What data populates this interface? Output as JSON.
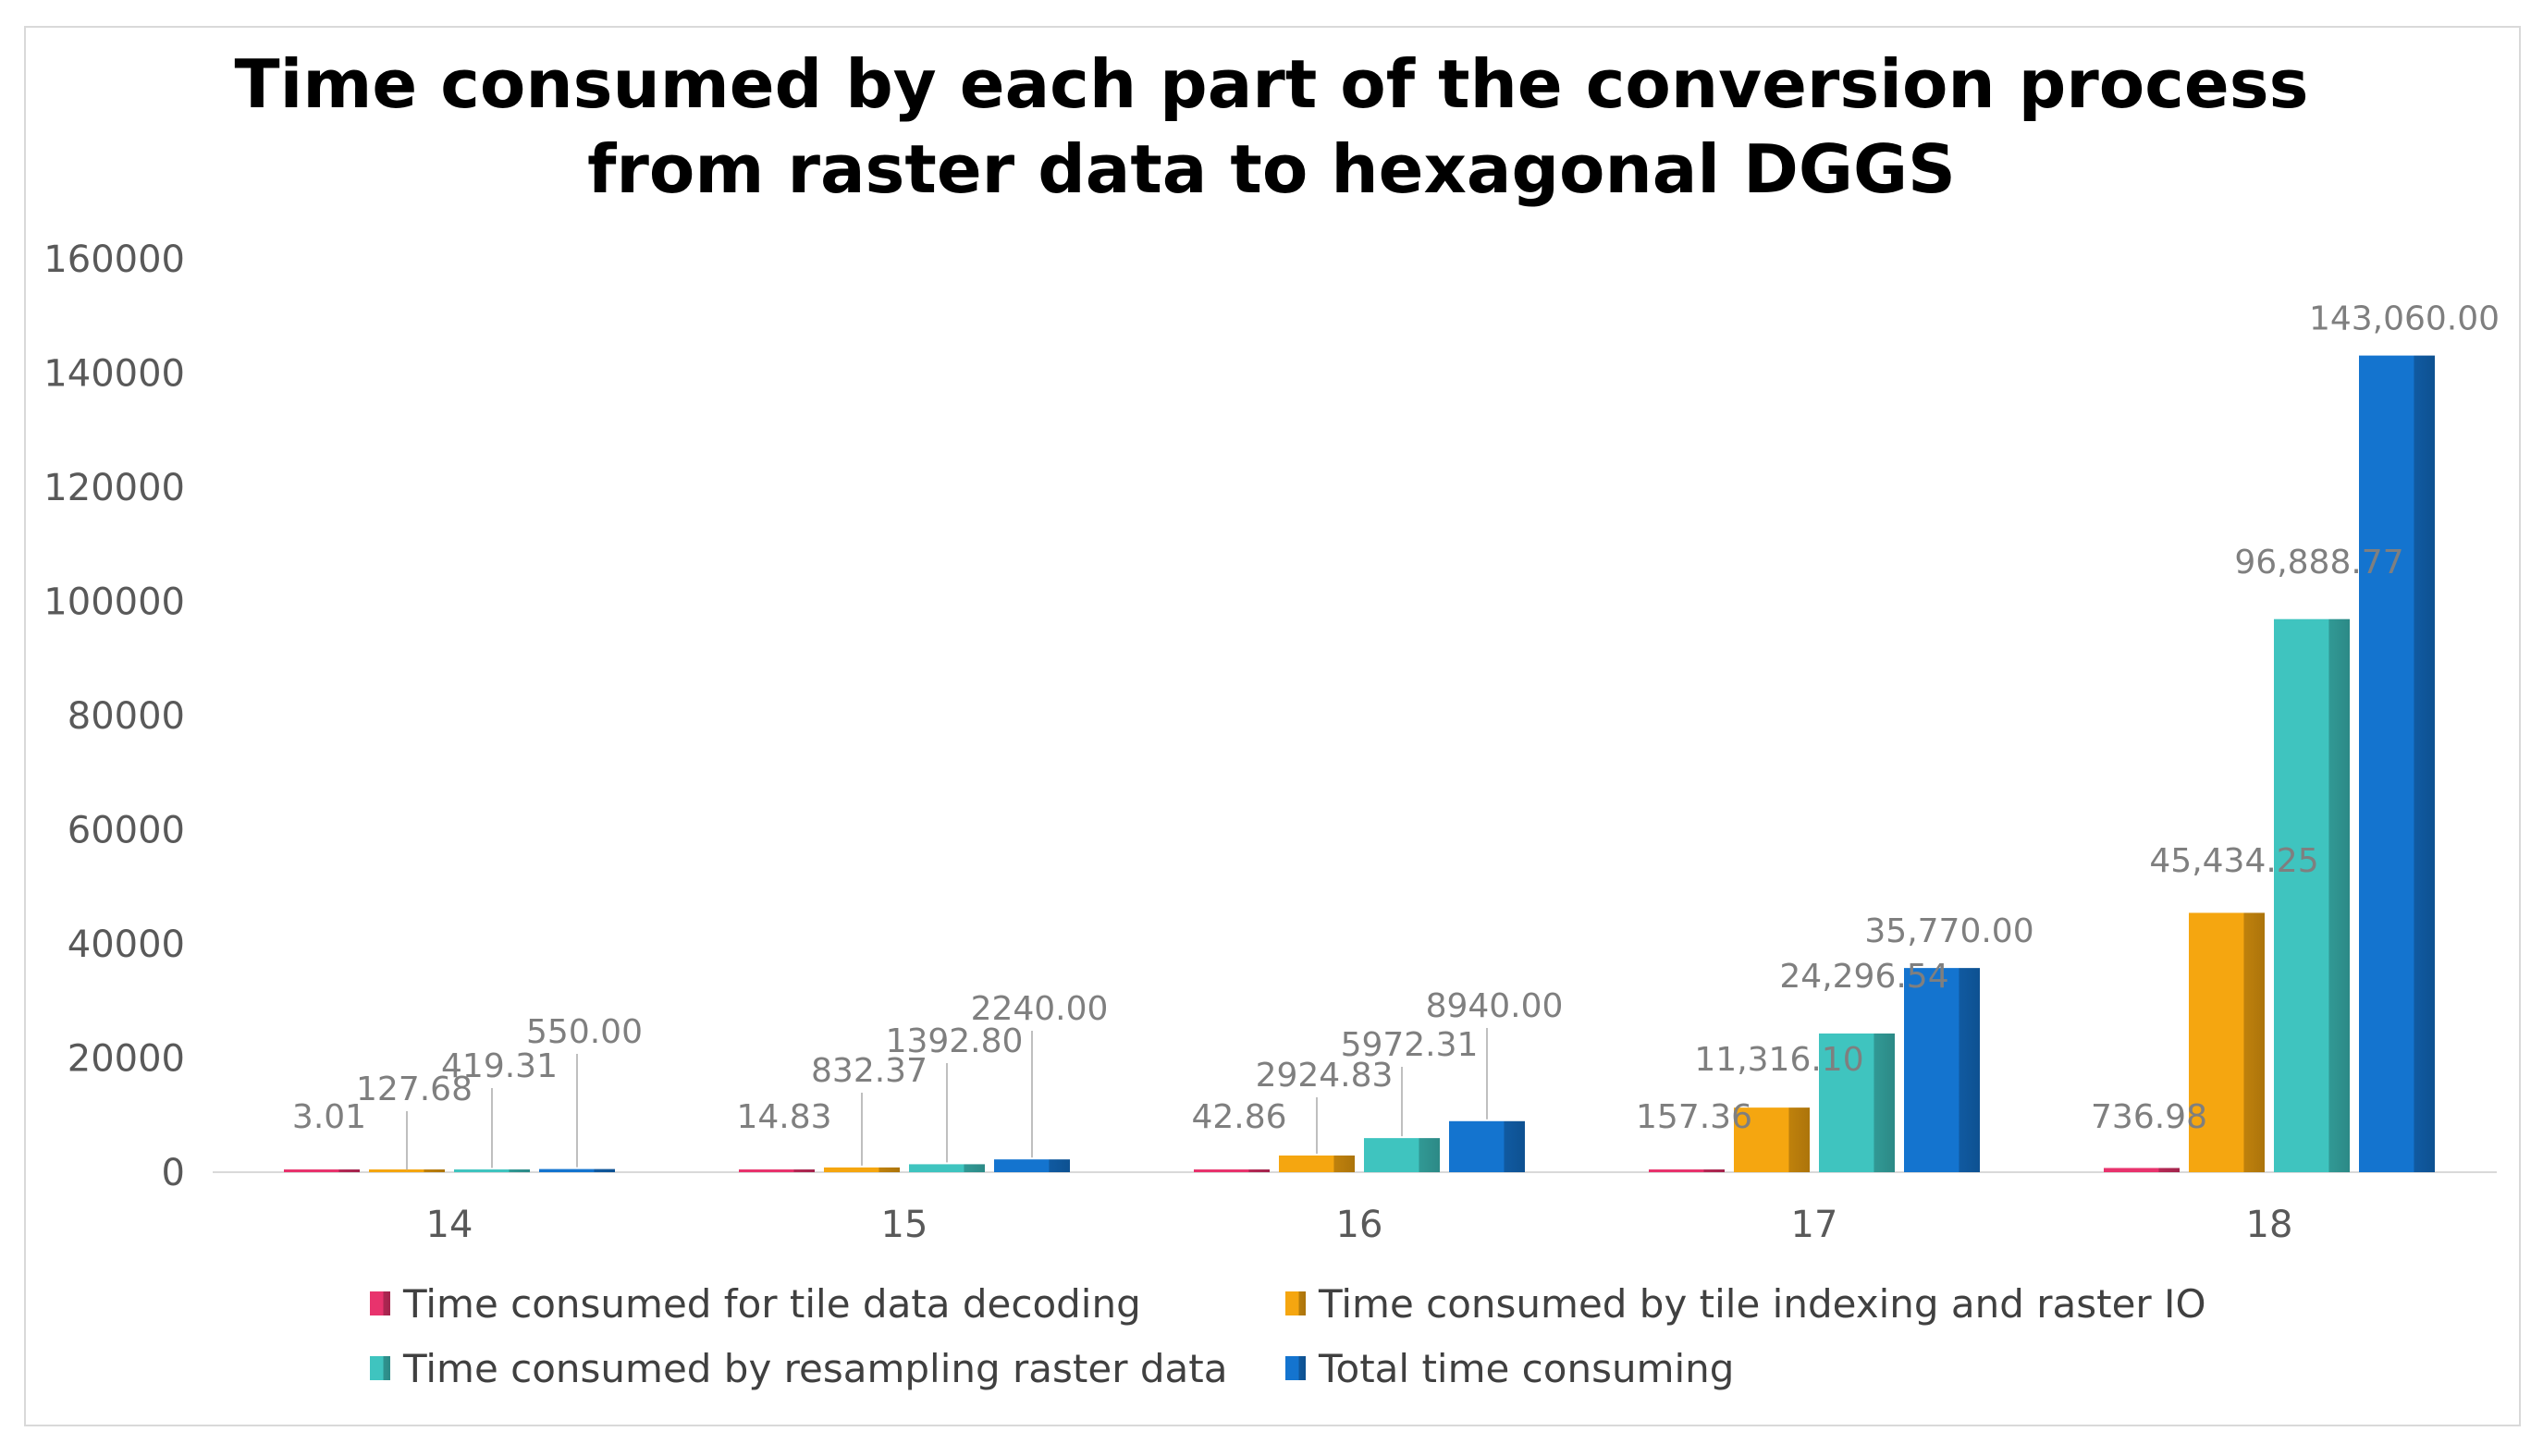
{
  "chart_data": {
    "type": "bar",
    "title": [
      "Time consumed by each part of the conversion process",
      "from raster data to hexagonal DGGS"
    ],
    "xlabel": "",
    "ylabel": "",
    "ylim": [
      0,
      160000
    ],
    "yticks": [
      "0",
      "20000",
      "40000",
      "60000",
      "80000",
      "100000",
      "120000",
      "140000",
      "160000"
    ],
    "categories": [
      "14",
      "15",
      "16",
      "17",
      "18"
    ],
    "legend_position": "bottom",
    "series": [
      {
        "name": "Time consumed for tile data decoding",
        "color": "#e8336d",
        "values": [
          3.01,
          14.83,
          42.86,
          157.36,
          736.98
        ],
        "labels": [
          "3.01",
          "14.83",
          "42.86",
          "157.36",
          "736.98"
        ]
      },
      {
        "name": "Time consumed by tile indexing and raster IO",
        "color": "#f5a610",
        "values": [
          127.68,
          832.37,
          2924.83,
          11316.1,
          45434.25
        ],
        "labels": [
          "127.68",
          "832.37",
          "2924.83",
          "11,316.10",
          "45,434.25"
        ]
      },
      {
        "name": "Time consumed by resampling raster data",
        "color": "#3fc4bf",
        "values": [
          419.31,
          1392.8,
          5972.31,
          24296.54,
          96888.77
        ],
        "labels": [
          "419.31",
          "1392.80",
          "5972.31",
          "24,296.54",
          "96,888.77"
        ]
      },
      {
        "name": "Total time consuming",
        "color": "#1474cf",
        "values": [
          550.0,
          2240.0,
          8940.0,
          35770.0,
          143060.0
        ],
        "labels": [
          "550.00",
          "2240.00",
          "8940.00",
          "35,770.00",
          "143,060.00"
        ]
      }
    ]
  }
}
